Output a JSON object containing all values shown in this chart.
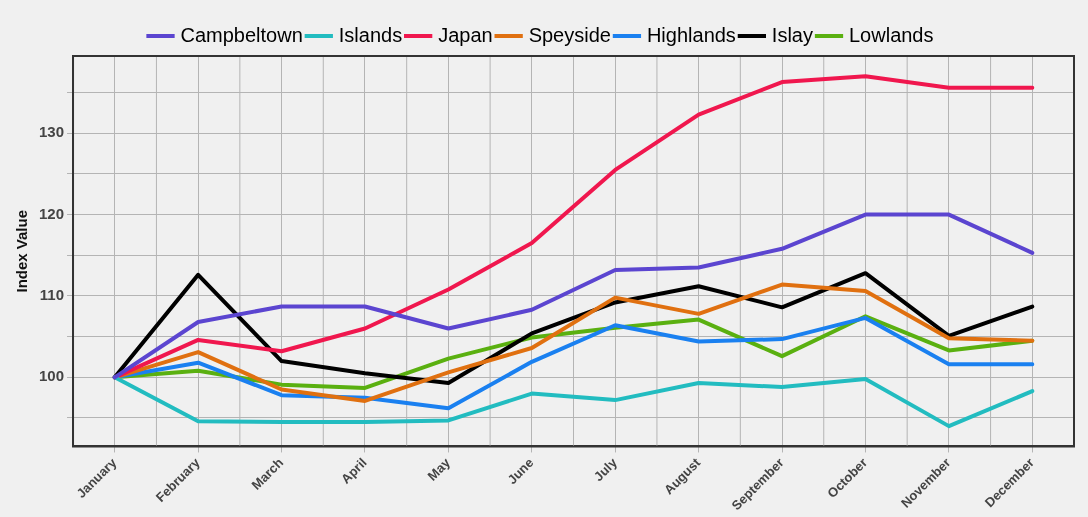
{
  "chart_data": {
    "type": "line",
    "ylabel": "Index Value",
    "categories": [
      "January",
      "February",
      "March",
      "April",
      "May",
      "June",
      "July",
      "August",
      "September",
      "October",
      "November",
      "December"
    ],
    "series": [
      {
        "name": "Campbeltown",
        "color": "#5b45d0",
        "values": [
          100,
          106.8,
          108.7,
          108.7,
          106,
          108.3,
          113.2,
          113.5,
          115.8,
          120,
          120,
          115.3
        ]
      },
      {
        "name": "Islands",
        "color": "#22bcc0",
        "values": [
          100,
          94.6,
          94.5,
          94.5,
          94.7,
          98,
          97.2,
          99.3,
          98.8,
          99.8,
          94,
          98.3
        ]
      },
      {
        "name": "Japan",
        "color": "#f0174e",
        "values": [
          100,
          104.6,
          103.2,
          106,
          110.8,
          116.5,
          125.5,
          132.3,
          136.3,
          137,
          135.6,
          135.6
        ]
      },
      {
        "name": "Speyside",
        "color": "#e07010",
        "values": [
          100,
          103.1,
          98.5,
          97.1,
          100.6,
          103.6,
          109.8,
          107.8,
          111.4,
          110.6,
          104.8,
          104.5
        ]
      },
      {
        "name": "Highlands",
        "color": "#1a80f0",
        "values": [
          100,
          101.8,
          97.8,
          97.5,
          96.2,
          101.9,
          106.4,
          104.4,
          104.7,
          107.3,
          101.6,
          101.6
        ]
      },
      {
        "name": "Islay",
        "color": "#000000",
        "values": [
          100,
          112.6,
          102,
          100.5,
          99.3,
          105.4,
          109.2,
          111.2,
          108.6,
          112.8,
          105.1,
          108.7
        ]
      },
      {
        "name": "Lowlands",
        "color": "#5ab010",
        "values": [
          100,
          100.8,
          99.1,
          98.7,
          102.3,
          104.9,
          106.1,
          107.1,
          102.6,
          107.5,
          103.3,
          104.5
        ]
      }
    ],
    "ylim": [
      91.5,
      139.5
    ],
    "yticks": [
      {
        "value": 95,
        "label": null
      },
      100,
      {
        "value": 105,
        "label": null
      },
      110,
      {
        "value": 115,
        "label": null
      },
      120,
      {
        "value": 125,
        "label": null
      },
      130,
      {
        "value": 135,
        "label": null
      }
    ],
    "grid": true,
    "legend": "top",
    "marker": "none",
    "line_style": "solid"
  }
}
